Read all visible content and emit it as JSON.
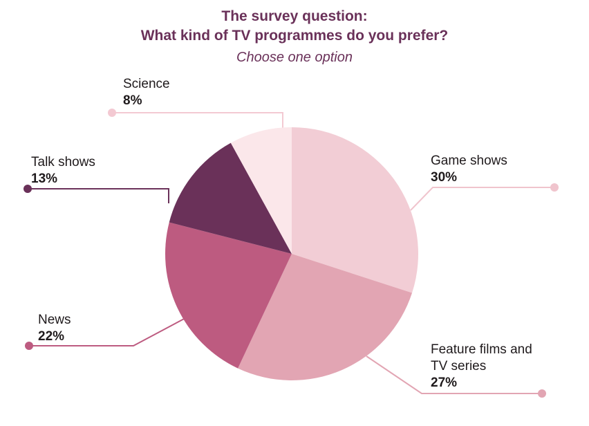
{
  "chart_data": {
    "type": "pie",
    "title_line1": "The survey question:",
    "title_line2": "What kind of TV programmes do you prefer?",
    "subtitle": "Choose one option",
    "slices": [
      {
        "label": "Game shows",
        "value": 30,
        "value_label": "30%",
        "color": "#f2cdd5"
      },
      {
        "label": "Feature films and TV series",
        "label_line1": "Feature films and",
        "label_line2": "TV series",
        "value": 27,
        "value_label": "27%",
        "color": "#e2a5b3"
      },
      {
        "label": "News",
        "value": 22,
        "value_label": "22%",
        "color": "#bd5b80"
      },
      {
        "label": "Talk shows",
        "value": 13,
        "value_label": "13%",
        "color": "#6a3159"
      },
      {
        "label": "Science",
        "value": 8,
        "value_label": "8%",
        "color": "#fbe7ea"
      }
    ]
  }
}
